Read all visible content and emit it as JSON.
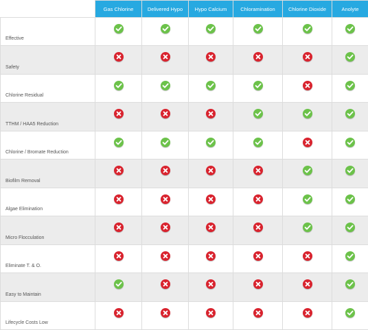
{
  "columns": [
    "Gas Chlorine",
    "Delivered Hypo",
    "Hypo Calcium",
    "Chloramination",
    "Chlorine Dioxide",
    "Anolyte"
  ],
  "rows": [
    {
      "label": "Effective",
      "values": [
        "check",
        "check",
        "check",
        "check",
        "check",
        "check"
      ]
    },
    {
      "label": "Safety",
      "values": [
        "cross",
        "cross",
        "cross",
        "cross",
        "cross",
        "check"
      ]
    },
    {
      "label": "Chlorine Residual",
      "values": [
        "check",
        "check",
        "check",
        "check",
        "cross",
        "check"
      ]
    },
    {
      "label": "TTHM / HAA5 Reduction",
      "values": [
        "cross",
        "cross",
        "cross",
        "check",
        "check",
        "check"
      ]
    },
    {
      "label": "Chlorine / Bromate Reduction",
      "values": [
        "check",
        "check",
        "check",
        "check",
        "cross",
        "check"
      ]
    },
    {
      "label": "Biofilm Removal",
      "values": [
        "cross",
        "cross",
        "cross",
        "cross",
        "check",
        "check"
      ]
    },
    {
      "label": "Algae Elimination",
      "values": [
        "cross",
        "cross",
        "cross",
        "cross",
        "check",
        "check"
      ]
    },
    {
      "label": "Micro Flocculation",
      "values": [
        "cross",
        "cross",
        "cross",
        "cross",
        "check",
        "check"
      ]
    },
    {
      "label": "Eliminate T. & O.",
      "values": [
        "cross",
        "cross",
        "cross",
        "cross",
        "cross",
        "check"
      ]
    },
    {
      "label": "Easy to Maintain",
      "values": [
        "check",
        "cross",
        "cross",
        "cross",
        "cross",
        "check"
      ]
    },
    {
      "label": "Lifecycle Costs Low",
      "values": [
        "cross",
        "cross",
        "cross",
        "cross",
        "cross",
        "check"
      ]
    }
  ],
  "colors": {
    "header": "#27a9e1",
    "check": "#6cc24a",
    "cross": "#d9232e",
    "alt_row": "#ececec"
  },
  "icons": {
    "check": "check-icon",
    "cross": "cross-icon"
  }
}
